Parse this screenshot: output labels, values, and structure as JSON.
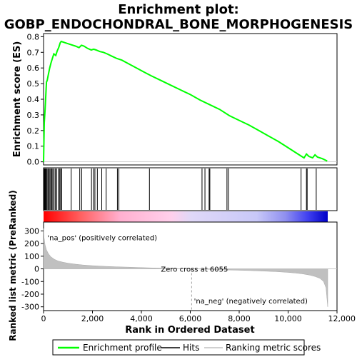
{
  "chart_data": {
    "type": "line",
    "title": "Enrichment plot:\nGOBP_ENDOCHONDRAL_BONE_MORPHOGENESIS",
    "es_panel": {
      "ylabel": "Enrichment score (ES)",
      "ylim": [
        -0.02,
        0.82
      ],
      "yticks": [
        0.0,
        0.1,
        0.2,
        0.3,
        0.4,
        0.5,
        0.6,
        0.7,
        0.8
      ],
      "ytick_labels": [
        "0.0",
        "0.1",
        "0.2",
        "0.3",
        "0.4",
        "0.5",
        "0.6",
        "0.7",
        "0.8"
      ],
      "xlim": [
        0,
        12000
      ],
      "series": [
        {
          "name": "Enrichment profile",
          "color": "#00ff00",
          "x": [
            0,
            30,
            60,
            90,
            120,
            150,
            200,
            250,
            300,
            360,
            420,
            500,
            560,
            620,
            680,
            720,
            900,
            1100,
            1300,
            1450,
            1550,
            1650,
            1800,
            1950,
            2050,
            2150,
            2300,
            2450,
            2600,
            2800,
            3000,
            3200,
            3500,
            3800,
            4100,
            4400,
            4800,
            5200,
            5600,
            6000,
            6400,
            6800,
            7200,
            7600,
            8000,
            8400,
            8800,
            9200,
            9600,
            10000,
            10300,
            10500,
            10650,
            10750,
            10850,
            11000,
            11100,
            11200,
            11400,
            11600
          ],
          "y": [
            0.0,
            0.25,
            0.33,
            0.42,
            0.51,
            0.52,
            0.56,
            0.6,
            0.63,
            0.66,
            0.69,
            0.68,
            0.71,
            0.73,
            0.76,
            0.77,
            0.76,
            0.75,
            0.74,
            0.73,
            0.745,
            0.74,
            0.725,
            0.715,
            0.72,
            0.715,
            0.705,
            0.7,
            0.69,
            0.675,
            0.66,
            0.65,
            0.625,
            0.6,
            0.575,
            0.55,
            0.52,
            0.49,
            0.46,
            0.43,
            0.395,
            0.365,
            0.335,
            0.295,
            0.265,
            0.235,
            0.2,
            0.165,
            0.13,
            0.09,
            0.06,
            0.04,
            0.025,
            0.05,
            0.035,
            0.025,
            0.045,
            0.03,
            0.02,
            0.005
          ]
        }
      ]
    },
    "hits": {
      "name": "Hits",
      "color": "#000000",
      "x": [
        20,
        40,
        60,
        80,
        110,
        140,
        180,
        220,
        260,
        300,
        340,
        380,
        430,
        480,
        540,
        600,
        660,
        700,
        740,
        1130,
        1480,
        1560,
        1960,
        2040,
        2100,
        2200,
        2380,
        2560,
        3020,
        3080,
        4330,
        6480,
        6600,
        6770,
        6800,
        7500,
        7560,
        10530,
        10750,
        10780,
        11150
      ]
    },
    "rank_panel": {
      "ylabel": "Ranked list metric (PreRanked)",
      "xlabel": "Rank in Ordered Dataset",
      "ylim": [
        -330,
        370
      ],
      "yticks": [
        -300,
        -200,
        -100,
        0,
        100,
        200,
        300
      ],
      "ytick_labels": [
        "-300",
        "-200",
        "-100",
        "0",
        "100",
        "200",
        "300"
      ],
      "xticks": [
        0,
        2000,
        4000,
        6000,
        8000,
        10000,
        12000
      ],
      "xtick_labels": [
        "0",
        "2,000",
        "4,000",
        "6,000",
        "8,000",
        "10,000",
        "12,000"
      ],
      "series": [
        {
          "name": "Ranking metric scores",
          "color": "#c0c0c0",
          "x": [
            0,
            20,
            60,
            120,
            200,
            300,
            450,
            600,
            800,
            1000,
            1300,
            1600,
            2000,
            2500,
            3000,
            3500,
            4000,
            4500,
            5000,
            5500,
            6055,
            6500,
            7000,
            7500,
            8000,
            8500,
            9000,
            9500,
            10000,
            10300,
            10600,
            10900,
            11100,
            11300,
            11450,
            11550,
            11620
          ],
          "y": [
            320,
            250,
            190,
            150,
            120,
            95,
            75,
            62,
            52,
            45,
            37,
            31,
            25,
            20,
            16,
            13,
            10,
            7,
            5,
            2,
            0,
            -2,
            -5,
            -8,
            -11,
            -14,
            -18,
            -22,
            -28,
            -33,
            -40,
            -50,
            -60,
            -75,
            -100,
            -150,
            -300
          ]
        }
      ],
      "annotations": [
        {
          "text": "'na_pos' (positively correlated)",
          "color": "#ff0000",
          "x": 100,
          "y": 255
        },
        {
          "text": "Zero cross at 6055",
          "color": "#000000",
          "x": 4800,
          "y": 0
        },
        {
          "text": "'na_neg' (negatively correlated)",
          "color": "#0000ff",
          "x": 6150,
          "y": -250
        }
      ]
    },
    "color_bar": {
      "xlim": [
        0,
        11620
      ]
    },
    "legend": {
      "placement": "bottom",
      "entries": [
        {
          "label": "Enrichment profile",
          "color": "#00ff00"
        },
        {
          "label": "Hits",
          "color": "#000000"
        },
        {
          "label": "Ranking metric scores",
          "color": "#c0c0c0"
        }
      ]
    }
  }
}
